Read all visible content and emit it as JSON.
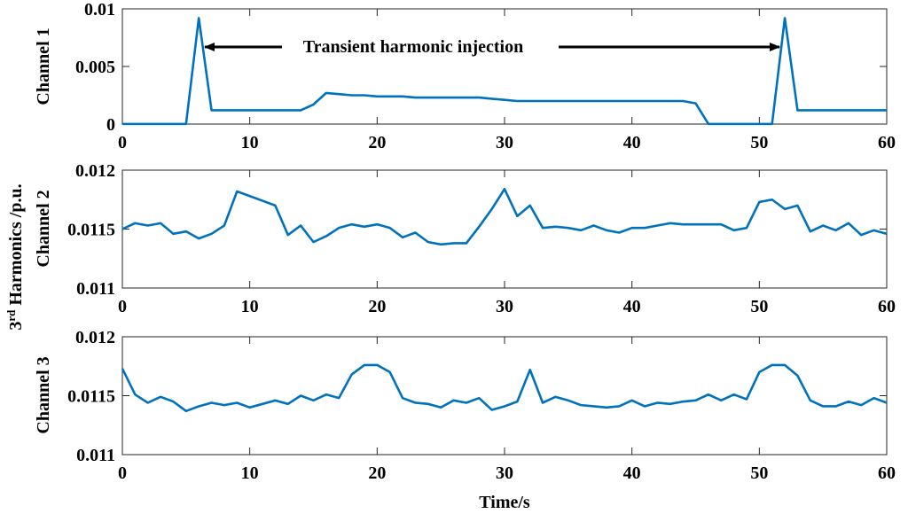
{
  "chart_data": [
    {
      "type": "line",
      "ylabel": "Channel 1",
      "xlim": [
        0,
        60
      ],
      "ylim": [
        0,
        0.01
      ],
      "xticks": [
        "0",
        "10",
        "20",
        "30",
        "40",
        "50",
        "60"
      ],
      "yticks": [
        "0",
        "0.005",
        "0.01"
      ],
      "color": "#0072BD",
      "annotation": "Transient harmonic injection",
      "series": [
        {
          "x": [
            0,
            1,
            2,
            3,
            4,
            5,
            6,
            7,
            8,
            9,
            10,
            11,
            12,
            13,
            14,
            15,
            16,
            17,
            18,
            19,
            20,
            21,
            22,
            23,
            24,
            25,
            26,
            27,
            28,
            29,
            30,
            31,
            32,
            33,
            34,
            35,
            36,
            37,
            38,
            39,
            40,
            41,
            42,
            43,
            44,
            45,
            46,
            47,
            48,
            49,
            50,
            51,
            52,
            53,
            54,
            55,
            56,
            57,
            58,
            59,
            60
          ],
          "values": [
            1e-05,
            1e-05,
            1e-05,
            1e-05,
            1e-05,
            1e-05,
            0.0092,
            0.0012,
            0.0012,
            0.0012,
            0.0012,
            0.0012,
            0.0012,
            0.0012,
            0.0012,
            0.0017,
            0.0027,
            0.0026,
            0.0025,
            0.0025,
            0.0024,
            0.0024,
            0.0024,
            0.0023,
            0.0023,
            0.0023,
            0.0023,
            0.0023,
            0.0023,
            0.0022,
            0.0021,
            0.002,
            0.002,
            0.002,
            0.002,
            0.002,
            0.002,
            0.002,
            0.002,
            0.002,
            0.002,
            0.002,
            0.002,
            0.002,
            0.002,
            0.0018,
            1e-05,
            1e-05,
            1e-05,
            1e-05,
            1e-05,
            1e-05,
            0.0092,
            0.0012,
            0.0012,
            0.0012,
            0.0012,
            0.0012,
            0.0012,
            0.0012,
            0.0012
          ]
        }
      ]
    },
    {
      "type": "line",
      "ylabel": "Channel 2",
      "xlim": [
        0,
        60
      ],
      "ylim": [
        0.011,
        0.012
      ],
      "xticks": [
        "0",
        "10",
        "20",
        "30",
        "40",
        "50",
        "60"
      ],
      "yticks": [
        "0.011",
        "0.0115",
        "0.012"
      ],
      "color": "#0072BD",
      "series": [
        {
          "x": [
            0,
            1,
            2,
            3,
            4,
            5,
            6,
            7,
            8,
            9,
            10,
            11,
            12,
            13,
            14,
            15,
            16,
            17,
            18,
            19,
            20,
            21,
            22,
            23,
            24,
            25,
            26,
            27,
            28,
            29,
            30,
            31,
            32,
            33,
            34,
            35,
            36,
            37,
            38,
            39,
            40,
            41,
            42,
            43,
            44,
            45,
            46,
            47,
            48,
            49,
            50,
            51,
            52,
            53,
            54,
            55,
            56,
            57,
            58,
            59,
            60
          ],
          "values": [
            0.0115,
            0.01155,
            0.01153,
            0.01155,
            0.01146,
            0.01148,
            0.01142,
            0.01146,
            0.01153,
            0.01182,
            0.01178,
            0.01174,
            0.0117,
            0.01145,
            0.01153,
            0.01139,
            0.01144,
            0.01151,
            0.01154,
            0.01152,
            0.01154,
            0.01151,
            0.01143,
            0.01147,
            0.01139,
            0.01137,
            0.01138,
            0.01138,
            0.01152,
            0.01167,
            0.01184,
            0.01161,
            0.0117,
            0.01151,
            0.01152,
            0.01151,
            0.01149,
            0.01153,
            0.01149,
            0.01147,
            0.01151,
            0.01151,
            0.01153,
            0.01155,
            0.01154,
            0.01154,
            0.01154,
            0.01154,
            0.01149,
            0.01151,
            0.01173,
            0.01175,
            0.01167,
            0.0117,
            0.01148,
            0.01153,
            0.01149,
            0.01155,
            0.01145,
            0.01149,
            0.01146
          ]
        }
      ]
    },
    {
      "type": "line",
      "ylabel": "Channel 3",
      "xlabel": "Time/s",
      "xlim": [
        0,
        60
      ],
      "ylim": [
        0.011,
        0.012
      ],
      "xticks": [
        "0",
        "10",
        "20",
        "30",
        "40",
        "50",
        "60"
      ],
      "yticks": [
        "0.011",
        "0.0115",
        "0.012"
      ],
      "color": "#0072BD",
      "series": [
        {
          "x": [
            0,
            1,
            2,
            3,
            4,
            5,
            6,
            7,
            8,
            9,
            10,
            11,
            12,
            13,
            14,
            15,
            16,
            17,
            18,
            19,
            20,
            21,
            22,
            23,
            24,
            25,
            26,
            27,
            28,
            29,
            30,
            31,
            32,
            33,
            34,
            35,
            36,
            37,
            38,
            39,
            40,
            41,
            42,
            43,
            44,
            45,
            46,
            47,
            48,
            49,
            50,
            51,
            52,
            53,
            54,
            55,
            56,
            57,
            58,
            59,
            60
          ],
          "values": [
            0.01173,
            0.01151,
            0.01144,
            0.01149,
            0.01145,
            0.01137,
            0.01141,
            0.01144,
            0.01142,
            0.01144,
            0.0114,
            0.01143,
            0.01146,
            0.01143,
            0.0115,
            0.01146,
            0.01151,
            0.01148,
            0.01168,
            0.01176,
            0.01176,
            0.0117,
            0.01148,
            0.01144,
            0.01143,
            0.0114,
            0.01146,
            0.01144,
            0.01148,
            0.01138,
            0.01141,
            0.01145,
            0.01172,
            0.01144,
            0.01149,
            0.01146,
            0.01142,
            0.01141,
            0.0114,
            0.01141,
            0.01146,
            0.01141,
            0.01144,
            0.01143,
            0.01145,
            0.01146,
            0.01151,
            0.01146,
            0.01151,
            0.01147,
            0.0117,
            0.01176,
            0.01176,
            0.01167,
            0.01146,
            0.01141,
            0.01141,
            0.01145,
            0.01142,
            0.01148,
            0.01144
          ]
        }
      ]
    }
  ],
  "shared_ylabel": {
    "base": "3",
    "sup": "rd",
    "rest": " Harmonics /p.u."
  }
}
